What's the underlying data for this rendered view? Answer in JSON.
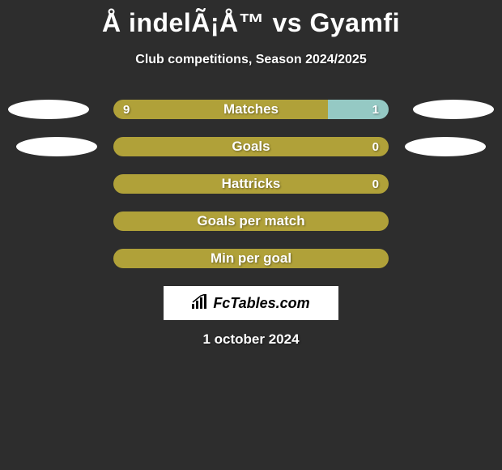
{
  "title": "Å indelÃ¡Å™ vs Gyamfi",
  "subtitle": "Club competitions, Season 2024/2025",
  "date": "1 october 2024",
  "logo_text": "FcTables.com",
  "colors": {
    "background": "#2d2d2d",
    "bar_primary": "#b0a139",
    "bar_secondary": "#95c9c4",
    "ellipse": "#ffffff",
    "text": "#ffffff"
  },
  "stats": [
    {
      "label": "Matches",
      "left_value": "9",
      "right_value": "1",
      "left_pct": 78,
      "right_pct": 22,
      "left_color": "#b0a139",
      "right_color": "#95c9c4",
      "show_ellipses": true,
      "ellipse_class": ""
    },
    {
      "label": "Goals",
      "left_value": "",
      "right_value": "0",
      "left_pct": 92,
      "right_pct": 8,
      "left_color": "#b0a139",
      "right_color": "#b0a139",
      "show_ellipses": true,
      "ellipse_class": "small"
    },
    {
      "label": "Hattricks",
      "left_value": "",
      "right_value": "0",
      "left_pct": 92,
      "right_pct": 8,
      "left_color": "#b0a139",
      "right_color": "#b0a139",
      "show_ellipses": false,
      "ellipse_class": ""
    },
    {
      "label": "Goals per match",
      "left_value": "",
      "right_value": "",
      "left_pct": 100,
      "right_pct": 0,
      "left_color": "#b0a139",
      "right_color": "#b0a139",
      "show_ellipses": false,
      "ellipse_class": ""
    },
    {
      "label": "Min per goal",
      "left_value": "",
      "right_value": "",
      "left_pct": 100,
      "right_pct": 0,
      "left_color": "#b0a139",
      "right_color": "#b0a139",
      "show_ellipses": false,
      "ellipse_class": ""
    }
  ]
}
